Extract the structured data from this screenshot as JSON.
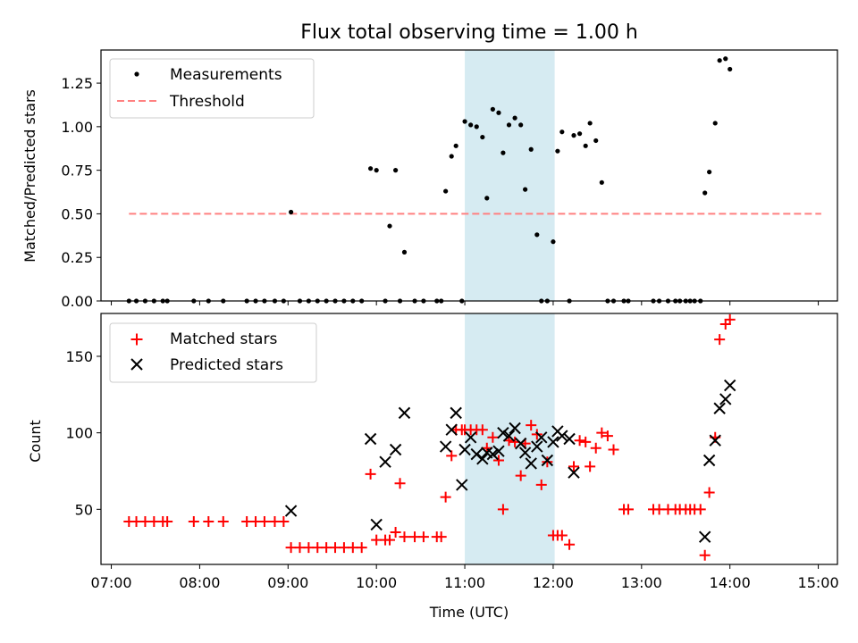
{
  "chart_data": [
    {
      "type": "scatter",
      "title": "Flux total observing time = 1.00 h",
      "ylabel": "Matched/Predicted stars",
      "xlim": [
        "06:53",
        "15:13"
      ],
      "ylim": [
        0,
        1.44
      ],
      "yticks": [
        "0.00",
        "0.25",
        "0.50",
        "0.75",
        "1.00",
        "1.25"
      ],
      "highlight": {
        "from": "11:00",
        "to": "12:01",
        "color": "#add8e6"
      },
      "legend": {
        "placement": "top-left",
        "entries": [
          "Measurements",
          "Threshold"
        ]
      },
      "threshold": {
        "name": "Threshold",
        "value": 0.5,
        "from": "07:12",
        "to": "15:02",
        "color": "#ff8080",
        "style": "dashed"
      },
      "series": [
        {
          "name": "Measurements",
          "color": "#000000",
          "marker": "dot",
          "points": [
            [
              "07:12",
              0
            ],
            [
              "07:17",
              0
            ],
            [
              "07:23",
              0
            ],
            [
              "07:29",
              0
            ],
            [
              "07:35",
              0
            ],
            [
              "07:38",
              0
            ],
            [
              "07:56",
              0
            ],
            [
              "08:06",
              0
            ],
            [
              "08:16",
              0
            ],
            [
              "08:32",
              0
            ],
            [
              "08:38",
              0
            ],
            [
              "08:44",
              0
            ],
            [
              "08:51",
              0
            ],
            [
              "08:57",
              0
            ],
            [
              "09:02",
              0.51
            ],
            [
              "09:08",
              0
            ],
            [
              "09:14",
              0
            ],
            [
              "09:20",
              0
            ],
            [
              "09:26",
              0
            ],
            [
              "09:32",
              0
            ],
            [
              "09:38",
              0
            ],
            [
              "09:44",
              0
            ],
            [
              "09:50",
              0
            ],
            [
              "09:56",
              0.76
            ],
            [
              "10:00",
              0.75
            ],
            [
              "10:06",
              0
            ],
            [
              "10:09",
              0.43
            ],
            [
              "10:13",
              0.75
            ],
            [
              "10:16",
              0
            ],
            [
              "10:19",
              0.28
            ],
            [
              "10:26",
              0
            ],
            [
              "10:32",
              0
            ],
            [
              "10:41",
              0
            ],
            [
              "10:44",
              0
            ],
            [
              "10:47",
              0.63
            ],
            [
              "10:51",
              0.83
            ],
            [
              "10:54",
              0.89
            ],
            [
              "10:58",
              0
            ],
            [
              "11:00",
              1.03
            ],
            [
              "11:04",
              1.01
            ],
            [
              "11:08",
              1.0
            ],
            [
              "11:12",
              0.94
            ],
            [
              "11:15",
              0.59
            ],
            [
              "11:19",
              1.1
            ],
            [
              "11:23",
              1.08
            ],
            [
              "11:26",
              0.85
            ],
            [
              "11:30",
              1.01
            ],
            [
              "11:34",
              1.05
            ],
            [
              "11:38",
              1.01
            ],
            [
              "11:41",
              0.64
            ],
            [
              "11:45",
              0.87
            ],
            [
              "11:49",
              0.38
            ],
            [
              "11:52",
              0
            ],
            [
              "11:56",
              0
            ],
            [
              "12:00",
              0.34
            ],
            [
              "12:03",
              0.86
            ],
            [
              "12:06",
              0.97
            ],
            [
              "12:14",
              0.95
            ],
            [
              "12:18",
              0.96
            ],
            [
              "12:11",
              0
            ],
            [
              "12:22",
              0.89
            ],
            [
              "12:25",
              1.02
            ],
            [
              "12:29",
              0.92
            ],
            [
              "12:33",
              0.68
            ],
            [
              "12:37",
              0
            ],
            [
              "12:41",
              0
            ],
            [
              "12:48",
              0
            ],
            [
              "12:51",
              0
            ],
            [
              "13:08",
              0
            ],
            [
              "13:12",
              0
            ],
            [
              "13:18",
              0
            ],
            [
              "13:23",
              0
            ],
            [
              "13:26",
              0
            ],
            [
              "13:30",
              0
            ],
            [
              "13:33",
              0
            ],
            [
              "13:36",
              0
            ],
            [
              "13:40",
              0
            ],
            [
              "13:43",
              0.62
            ],
            [
              "13:46",
              0.74
            ],
            [
              "13:50",
              1.02
            ],
            [
              "13:53",
              1.38
            ],
            [
              "13:57",
              1.39
            ],
            [
              "14:00",
              1.33
            ]
          ]
        }
      ]
    },
    {
      "type": "scatter",
      "xlabel": "Time (UTC)",
      "ylabel": "Count",
      "xlim": [
        "06:53",
        "15:13"
      ],
      "ylim": [
        14,
        178
      ],
      "xticks": [
        "07:00",
        "08:00",
        "09:00",
        "10:00",
        "11:00",
        "12:00",
        "13:00",
        "14:00",
        "15:00"
      ],
      "yticks": [
        "50",
        "100",
        "150"
      ],
      "highlight": {
        "from": "11:00",
        "to": "12:01",
        "color": "#add8e6"
      },
      "legend": {
        "placement": "top-left",
        "entries": [
          "Matched stars",
          "Predicted stars"
        ]
      },
      "series": [
        {
          "name": "Matched stars",
          "color": "#ff0000",
          "marker": "plus",
          "points": [
            [
              "07:12",
              42
            ],
            [
              "07:17",
              42
            ],
            [
              "07:23",
              42
            ],
            [
              "07:29",
              42
            ],
            [
              "07:35",
              42
            ],
            [
              "07:38",
              42
            ],
            [
              "07:56",
              42
            ],
            [
              "08:06",
              42
            ],
            [
              "08:16",
              42
            ],
            [
              "08:32",
              42
            ],
            [
              "08:38",
              42
            ],
            [
              "08:44",
              42
            ],
            [
              "08:51",
              42
            ],
            [
              "08:57",
              42
            ],
            [
              "09:02",
              25
            ],
            [
              "09:08",
              25
            ],
            [
              "09:14",
              25
            ],
            [
              "09:20",
              25
            ],
            [
              "09:26",
              25
            ],
            [
              "09:32",
              25
            ],
            [
              "09:38",
              25
            ],
            [
              "09:44",
              25
            ],
            [
              "09:50",
              25
            ],
            [
              "09:56",
              73
            ],
            [
              "10:00",
              30
            ],
            [
              "10:06",
              30
            ],
            [
              "10:09",
              30
            ],
            [
              "10:13",
              35
            ],
            [
              "10:16",
              67
            ],
            [
              "10:19",
              32
            ],
            [
              "10:26",
              32
            ],
            [
              "10:32",
              32
            ],
            [
              "10:41",
              32
            ],
            [
              "10:44",
              32
            ],
            [
              "10:47",
              58
            ],
            [
              "10:51",
              85
            ],
            [
              "10:54",
              102
            ],
            [
              "10:58",
              102
            ],
            [
              "11:00",
              102
            ],
            [
              "11:04",
              102
            ],
            [
              "11:08",
              102
            ],
            [
              "11:12",
              102
            ],
            [
              "11:15",
              90
            ],
            [
              "11:19",
              97
            ],
            [
              "11:23",
              82
            ],
            [
              "11:26",
              50
            ],
            [
              "11:30",
              95
            ],
            [
              "11:34",
              94
            ],
            [
              "11:38",
              72
            ],
            [
              "11:41",
              93
            ],
            [
              "11:45",
              105
            ],
            [
              "11:49",
              99
            ],
            [
              "11:52",
              66
            ],
            [
              "11:56",
              81
            ],
            [
              "12:00",
              33
            ],
            [
              "12:03",
              33
            ],
            [
              "12:06",
              33
            ],
            [
              "12:11",
              27
            ],
            [
              "12:14",
              78
            ],
            [
              "12:18",
              95
            ],
            [
              "12:22",
              94
            ],
            [
              "12:25",
              78
            ],
            [
              "12:29",
              90
            ],
            [
              "12:33",
              100
            ],
            [
              "12:37",
              98
            ],
            [
              "12:41",
              89
            ],
            [
              "12:48",
              50
            ],
            [
              "12:51",
              50
            ],
            [
              "13:08",
              50
            ],
            [
              "13:12",
              50
            ],
            [
              "13:18",
              50
            ],
            [
              "13:23",
              50
            ],
            [
              "13:26",
              50
            ],
            [
              "13:30",
              50
            ],
            [
              "13:33",
              50
            ],
            [
              "13:36",
              50
            ],
            [
              "13:40",
              50
            ],
            [
              "13:43",
              20
            ],
            [
              "13:46",
              61
            ],
            [
              "13:50",
              97
            ],
            [
              "13:53",
              161
            ],
            [
              "13:57",
              171
            ],
            [
              "14:00",
              174
            ]
          ]
        },
        {
          "name": "Predicted stars",
          "color": "#000000",
          "marker": "x",
          "points": [
            [
              "09:02",
              49
            ],
            [
              "09:56",
              96
            ],
            [
              "10:00",
              40
            ],
            [
              "10:06",
              81
            ],
            [
              "10:13",
              89
            ],
            [
              "10:19",
              113
            ],
            [
              "10:47",
              91
            ],
            [
              "10:51",
              102
            ],
            [
              "10:54",
              113
            ],
            [
              "10:58",
              66
            ],
            [
              "11:00",
              89
            ],
            [
              "11:04",
              97
            ],
            [
              "11:08",
              86
            ],
            [
              "11:12",
              83
            ],
            [
              "11:15",
              87
            ],
            [
              "11:19",
              86
            ],
            [
              "11:23",
              88
            ],
            [
              "11:26",
              100
            ],
            [
              "11:30",
              98
            ],
            [
              "11:34",
              103
            ],
            [
              "11:38",
              93
            ],
            [
              "11:41",
              87
            ],
            [
              "11:45",
              80
            ],
            [
              "11:49",
              91
            ],
            [
              "11:52",
              97
            ],
            [
              "11:56",
              82
            ],
            [
              "12:00",
              94
            ],
            [
              "12:03",
              101
            ],
            [
              "12:06",
              98
            ],
            [
              "12:11",
              96
            ],
            [
              "12:14",
              74
            ],
            [
              "13:43",
              32
            ],
            [
              "13:46",
              82
            ],
            [
              "13:50",
              95
            ],
            [
              "13:53",
              116
            ],
            [
              "13:57",
              122
            ],
            [
              "14:00",
              131
            ]
          ]
        }
      ]
    }
  ]
}
